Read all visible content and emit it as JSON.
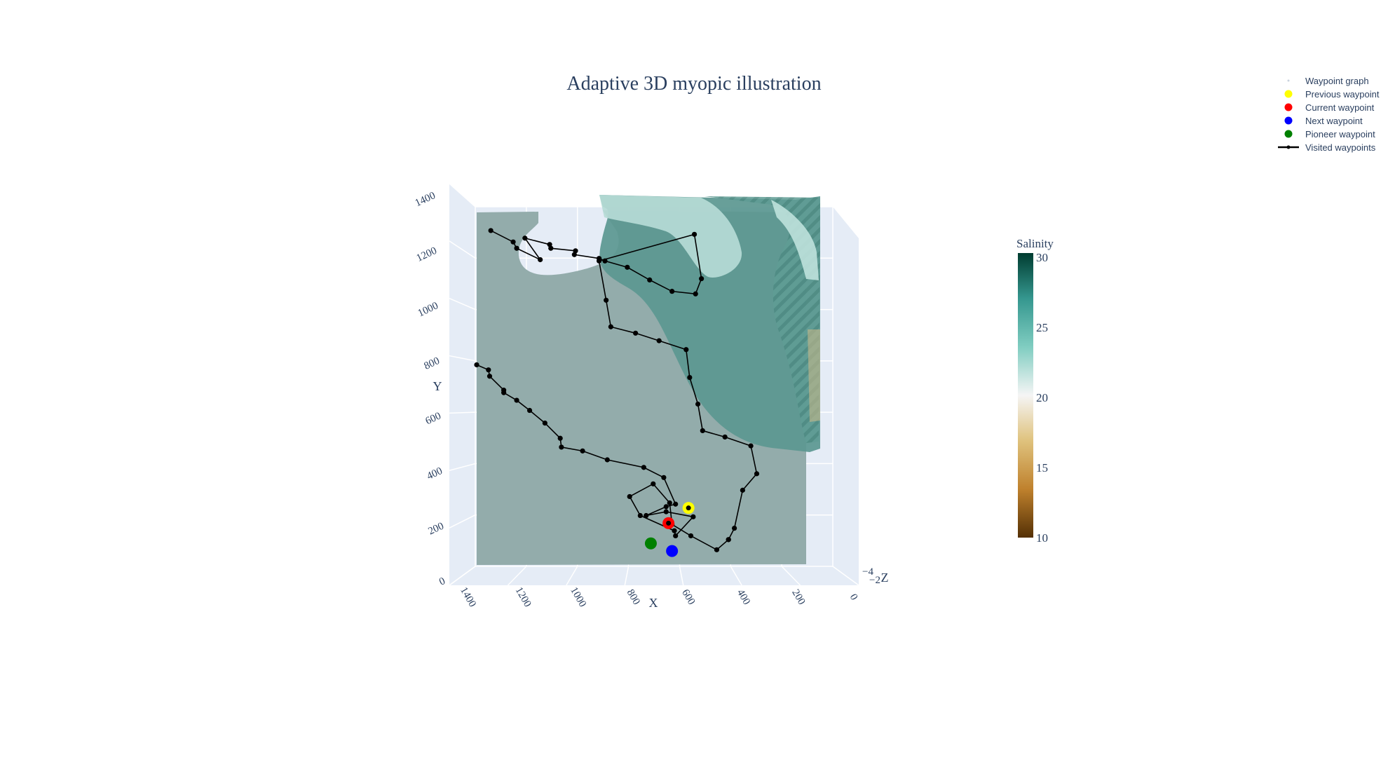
{
  "chart_data": {
    "type": "scatter",
    "title": "Adaptive 3D myopic illustration",
    "xlabel": "X",
    "ylabel": "Y",
    "zlabel": "Z",
    "xlim": [
      0,
      1400
    ],
    "ylim": [
      0,
      1400
    ],
    "x_ticks": [
      "1400",
      "1200",
      "1000",
      "800",
      "600",
      "400",
      "200",
      "0"
    ],
    "y_ticks": [
      "0",
      "200",
      "400",
      "600",
      "800",
      "1000",
      "1200",
      "1400"
    ],
    "z_ticks": [
      "−4",
      "−2"
    ],
    "legend_position": "top-right",
    "legend": [
      {
        "name": "Waypoint graph",
        "color": "#c9d2de",
        "symbol": "dot-small"
      },
      {
        "name": "Previous waypoint",
        "color": "#ffff00",
        "symbol": "dot"
      },
      {
        "name": "Current waypoint",
        "color": "#ff0000",
        "symbol": "dot"
      },
      {
        "name": "Next waypoint",
        "color": "#0000ff",
        "symbol": "dot"
      },
      {
        "name": "Pioneer waypoint",
        "color": "#008000",
        "symbol": "dot"
      },
      {
        "name": "Visited waypoints",
        "color": "#000000",
        "symbol": "line-dot"
      }
    ],
    "colorbar": {
      "title": "Salinity",
      "range": [
        10,
        30
      ],
      "ticks": [
        "30",
        "25",
        "20",
        "15",
        "10"
      ],
      "colors": [
        "#003c30",
        "#35978f",
        "#80cdc1",
        "#f5f5f5",
        "#dfc27d",
        "#bf812d",
        "#543005"
      ]
    },
    "visited_path": [
      [
        1340,
        1320
      ],
      [
        1245,
        1275
      ],
      [
        1230,
        1250
      ],
      [
        1130,
        1205
      ],
      [
        1195,
        1290
      ],
      [
        1090,
        1265
      ],
      [
        1085,
        1250
      ],
      [
        980,
        1240
      ],
      [
        985,
        1225
      ],
      [
        880,
        1210
      ],
      [
        855,
        1200
      ],
      [
        760,
        1175
      ],
      [
        665,
        1125
      ],
      [
        570,
        1080
      ],
      [
        470,
        1070
      ],
      [
        445,
        1130
      ],
      [
        475,
        1305
      ],
      [
        880,
        1200
      ],
      [
        850,
        1045
      ],
      [
        830,
        940
      ],
      [
        725,
        915
      ],
      [
        625,
        885
      ],
      [
        510,
        850
      ],
      [
        495,
        740
      ],
      [
        460,
        635
      ],
      [
        440,
        530
      ],
      [
        345,
        505
      ],
      [
        235,
        470
      ],
      [
        210,
        360
      ],
      [
        270,
        295
      ],
      [
        305,
        145
      ],
      [
        330,
        100
      ],
      [
        330,
        100
      ],
      [
        380,
        60
      ],
      [
        490,
        115
      ],
      [
        570,
        160
      ],
      [
        580,
        245
      ],
      [
        650,
        320
      ],
      [
        750,
        270
      ],
      [
        705,
        195
      ],
      [
        560,
        135
      ],
      [
        555,
        115
      ],
      [
        480,
        190
      ],
      [
        595,
        210
      ],
      [
        680,
        195
      ],
      [
        595,
        230
      ],
      [
        555,
        240
      ],
      [
        605,
        345
      ],
      [
        690,
        385
      ],
      [
        845,
        415
      ],
      [
        950,
        450
      ],
      [
        1040,
        465
      ],
      [
        1045,
        500
      ],
      [
        1110,
        560
      ],
      [
        1175,
        610
      ],
      [
        1230,
        650
      ],
      [
        1285,
        680
      ],
      [
        1285,
        690
      ],
      [
        1345,
        745
      ],
      [
        1350,
        770
      ],
      [
        1400,
        790
      ]
    ],
    "visited_points_display": [
      [
        1340,
        1320
      ],
      [
        1245,
        1275
      ],
      [
        1230,
        1250
      ],
      [
        1130,
        1205
      ],
      [
        1195,
        1290
      ],
      [
        1090,
        1265
      ],
      [
        1085,
        1250
      ],
      [
        980,
        1240
      ],
      [
        985,
        1225
      ],
      [
        880,
        1210
      ],
      [
        760,
        1175
      ],
      [
        665,
        1125
      ],
      [
        570,
        1080
      ],
      [
        470,
        1070
      ],
      [
        445,
        1130
      ],
      [
        475,
        1305
      ],
      [
        850,
        1045
      ],
      [
        830,
        940
      ],
      [
        725,
        915
      ],
      [
        625,
        885
      ],
      [
        510,
        850
      ],
      [
        495,
        740
      ],
      [
        460,
        635
      ],
      [
        440,
        530
      ],
      [
        345,
        505
      ],
      [
        235,
        470
      ],
      [
        210,
        360
      ],
      [
        270,
        295
      ]
    ],
    "previous_waypoint": {
      "x": 500,
      "y": 225
    },
    "current_waypoint": {
      "x": 585,
      "y": 165
    },
    "next_waypoint": {
      "x": 570,
      "y": 55
    },
    "pioneer_waypoint": {
      "x": 660,
      "y": 85
    }
  }
}
